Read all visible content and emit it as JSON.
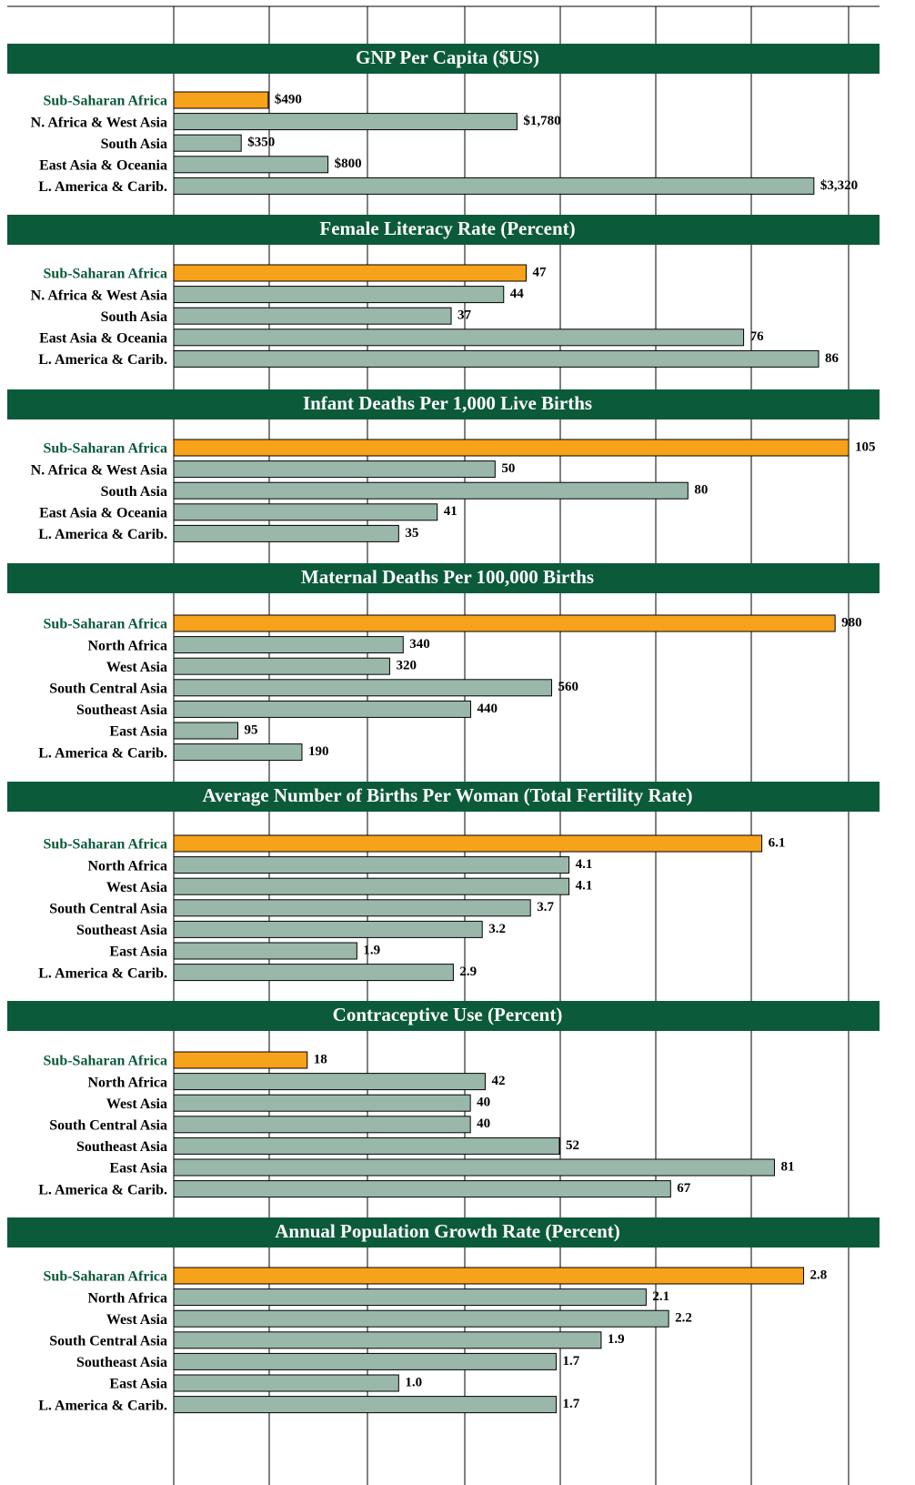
{
  "chart_data": [
    {
      "type": "hbar",
      "title": "GNP Per Capita ($US)",
      "categories": [
        "Sub-Saharan Africa",
        "N. Africa & West Asia",
        "South Asia",
        "East Asia & Oceania",
        "L. America & Carib."
      ],
      "values": [
        490,
        1780,
        350,
        800,
        3320
      ],
      "value_labels": [
        "$490",
        "$1,780",
        "$350",
        "$800",
        "$3,320"
      ],
      "colors": [
        "#f7a21b",
        "#9ab8aa",
        "#9ab8aa",
        "#9ab8aa",
        "#9ab8aa"
      ],
      "xlim": [
        0,
        3500
      ]
    },
    {
      "type": "hbar",
      "title": "Female Literacy Rate (Percent)",
      "categories": [
        "Sub-Saharan Africa",
        "N. Africa & West Asia",
        "South Asia",
        "East Asia & Oceania",
        "L. America & Carib."
      ],
      "values": [
        47,
        44,
        37,
        76,
        86
      ],
      "colors": [
        "#f7a21b",
        "#9ab8aa",
        "#9ab8aa",
        "#9ab8aa",
        "#9ab8aa"
      ],
      "xlim": [
        0,
        90
      ]
    },
    {
      "type": "hbar",
      "title": "Infant Deaths Per 1,000 Live Births",
      "categories": [
        "Sub-Saharan Africa",
        "N. Africa & West Asia",
        "South Asia",
        "East Asia & Oceania",
        "L. America & Carib."
      ],
      "values": [
        105,
        50,
        80,
        41,
        35
      ],
      "colors": [
        "#f7a21b",
        "#9ab8aa",
        "#9ab8aa",
        "#9ab8aa",
        "#9ab8aa"
      ],
      "xlim": [
        0,
        105
      ]
    },
    {
      "type": "hbar",
      "title": "Maternal Deaths Per 100,000 Births",
      "categories": [
        "Sub-Saharan Africa",
        "North Africa",
        "West Asia",
        "South Central Asia",
        "Southeast Asia",
        "East Asia",
        "L. America & Carib."
      ],
      "values": [
        980,
        340,
        320,
        560,
        440,
        95,
        190
      ],
      "colors": [
        "#f7a21b",
        "#9ab8aa",
        "#9ab8aa",
        "#9ab8aa",
        "#9ab8aa",
        "#9ab8aa",
        "#9ab8aa"
      ],
      "xlim": [
        0,
        1000
      ]
    },
    {
      "type": "hbar",
      "title": "Average Number of Births Per Woman (Total Fertility Rate)",
      "categories": [
        "Sub-Saharan Africa",
        "North Africa",
        "West Asia",
        "South Central Asia",
        "Southeast Asia",
        "East Asia",
        "L. America & Carib."
      ],
      "values": [
        6.1,
        4.1,
        4.1,
        3.7,
        3.2,
        1.9,
        2.9
      ],
      "colors": [
        "#f7a21b",
        "#9ab8aa",
        "#9ab8aa",
        "#9ab8aa",
        "#9ab8aa",
        "#9ab8aa",
        "#9ab8aa"
      ],
      "xlim": [
        0,
        7
      ]
    },
    {
      "type": "hbar",
      "title": "Contraceptive Use (Percent)",
      "categories": [
        "Sub-Saharan Africa",
        "North Africa",
        "West Asia",
        "South Central Asia",
        "Southeast Asia",
        "East Asia",
        "L. America & Carib."
      ],
      "values": [
        18,
        42,
        40,
        40,
        52,
        81,
        67
      ],
      "colors": [
        "#f7a21b",
        "#9ab8aa",
        "#9ab8aa",
        "#9ab8aa",
        "#9ab8aa",
        "#9ab8aa",
        "#9ab8aa"
      ],
      "xlim": [
        0,
        91
      ]
    },
    {
      "type": "hbar",
      "title": "Annual Population Growth Rate (Percent)",
      "categories": [
        "Sub-Saharan Africa",
        "North Africa",
        "West Asia",
        "South Central Asia",
        "Southeast Asia",
        "East Asia",
        "L. America & Carib."
      ],
      "values": [
        2.8,
        2.1,
        2.2,
        1.9,
        1.7,
        1.0,
        1.7
      ],
      "value_labels": [
        "2.8",
        "2.1",
        "2.2",
        "1.9",
        "1.7",
        "1.0",
        "1.7"
      ],
      "colors": [
        "#f7a21b",
        "#9ab8aa",
        "#9ab8aa",
        "#9ab8aa",
        "#9ab8aa",
        "#9ab8aa",
        "#9ab8aa"
      ],
      "xlim": [
        0,
        3
      ]
    }
  ]
}
